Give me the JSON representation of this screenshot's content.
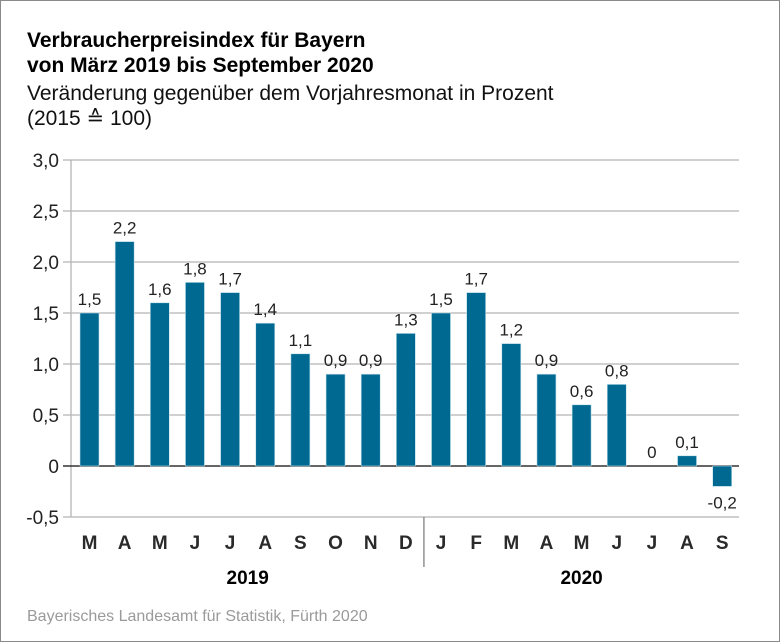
{
  "header": {
    "title_line1": "Verbraucherpreisindex für Bayern",
    "title_line2": "von März 2019 bis September 2020",
    "subtitle_line1": "Veränderung gegenüber dem Vorjahresmonat in Prozent",
    "subtitle_line2": "(2015 ≙ 100)"
  },
  "source": "Bayerisches Landesamt für Statistik, Fürth 2020",
  "colors": {
    "bar": "#006992",
    "grid": "#b4b4b4",
    "zero_line": "#333333"
  },
  "chart_data": {
    "type": "bar",
    "title": "Verbraucherpreisindex für Bayern von März 2019 bis September 2020",
    "subtitle": "Veränderung gegenüber dem Vorjahresmonat in Prozent (2015 ≙ 100)",
    "xlabel": "",
    "ylabel": "",
    "ylim": [
      -0.5,
      3.0
    ],
    "yticks": [
      3.0,
      2.5,
      2.0,
      1.5,
      1.0,
      0.5,
      0,
      -0.5
    ],
    "ytick_labels": [
      "3,0",
      "2,5",
      "2,0",
      "1,5",
      "1,0",
      "0,5",
      "0",
      "-0,5"
    ],
    "grid": true,
    "legend": "none",
    "categories": [
      "M",
      "A",
      "M",
      "J",
      "J",
      "A",
      "S",
      "O",
      "N",
      "D",
      "J",
      "F",
      "M",
      "A",
      "M",
      "J",
      "J",
      "A",
      "S"
    ],
    "values": [
      1.5,
      2.2,
      1.6,
      1.8,
      1.7,
      1.4,
      1.1,
      0.9,
      0.9,
      1.3,
      1.5,
      1.7,
      1.2,
      0.9,
      0.6,
      0.8,
      0,
      0.1,
      -0.2
    ],
    "value_labels": [
      "1,5",
      "2,2",
      "1,6",
      "1,8",
      "1,7",
      "1,4",
      "1,1",
      "0,9",
      "0,9",
      "1,3",
      "1,5",
      "1,7",
      "1,2",
      "0,9",
      "0,6",
      "0,8",
      "0",
      "0,1",
      "-0,2"
    ],
    "year_groups": [
      {
        "label": "2019",
        "start": 0,
        "end": 9
      },
      {
        "label": "2020",
        "start": 10,
        "end": 18
      }
    ]
  }
}
